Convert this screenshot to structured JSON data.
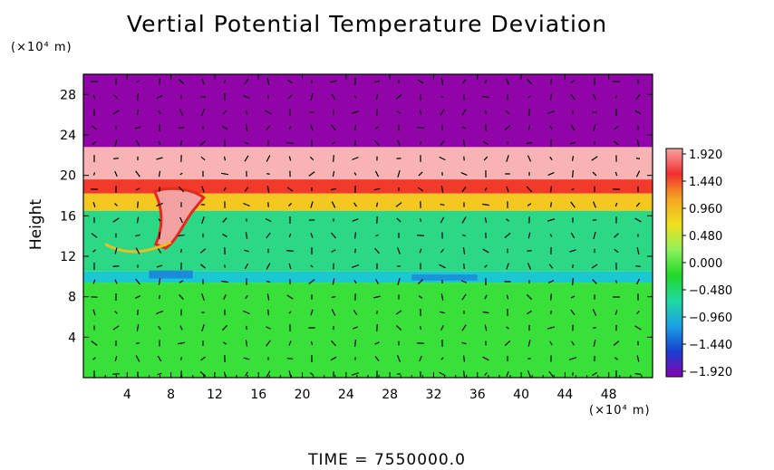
{
  "chart_data": {
    "type": "heatmap",
    "title": "Vertial Potential Temperature Deviation",
    "ylabel": "Height",
    "xunit": "(×10⁴ m)",
    "yunit": "(×10⁴ m)",
    "footer": "TIME  =  7550000.0",
    "xlim": [
      0,
      52
    ],
    "ylim": [
      0,
      30
    ],
    "xticks": [
      "4",
      "8",
      "12",
      "16",
      "20",
      "24",
      "28",
      "32",
      "36",
      "40",
      "44",
      "48"
    ],
    "xtick_values": [
      4,
      8,
      12,
      16,
      20,
      24,
      28,
      32,
      36,
      40,
      44,
      48
    ],
    "yticks": [
      "4",
      "8",
      "12",
      "16",
      "20",
      "24",
      "28"
    ],
    "ytick_values": [
      4,
      8,
      12,
      16,
      20,
      24,
      28
    ],
    "colorbar": {
      "range": [
        -1.92,
        1.92
      ],
      "labels": [
        "1.920",
        "1.440",
        "0.960",
        "0.480",
        "0.000",
        "−0.480",
        "−0.960",
        "−1.440",
        "−1.920"
      ],
      "colors": [
        "#f7a3a3",
        "#f23030",
        "#f5a623",
        "#f0e020",
        "#8ef05a",
        "#1fd92a",
        "#21d8a2",
        "#1aa0e6",
        "#1840d0",
        "#8800b0"
      ]
    },
    "field_bands": [
      {
        "y_from": 22.8,
        "y_to": 30,
        "value": -1.92,
        "description_color": "#9105a8"
      },
      {
        "y_from": 19.6,
        "y_to": 22.8,
        "value": 1.92,
        "description_color": "#f8b4b4"
      },
      {
        "y_from": 18.2,
        "y_to": 19.6,
        "value": 1.3,
        "description_color": "#f23a2a"
      },
      {
        "y_from": 16.5,
        "y_to": 18.2,
        "value": 0.7,
        "description_color": "#f5c821"
      },
      {
        "y_from": 10.5,
        "y_to": 16.5,
        "value": -0.3,
        "description_color": "#2cd886"
      },
      {
        "y_from": 9.4,
        "y_to": 10.5,
        "value": -0.7,
        "description_color": "#1cc8d0"
      },
      {
        "y_from": 0,
        "y_to": 9.4,
        "value": 0.0,
        "description_color": "#3ae03a"
      }
    ],
    "colors": {
      "background": "#ffffff",
      "vectors": "#000000"
    }
  }
}
